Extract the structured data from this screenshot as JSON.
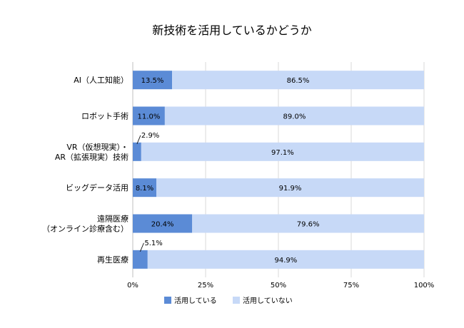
{
  "chart_data": {
    "type": "bar",
    "orientation": "horizontal",
    "stacked": true,
    "percent_stacked": true,
    "title": "新技術を活用しているかどうか",
    "categories": [
      [
        "AI（人工知能）"
      ],
      [
        "ロボット手術"
      ],
      [
        "VR（仮想現実）・",
        "AR（拡張現実）技術"
      ],
      [
        "ビッグデータ活用"
      ],
      [
        "遠隔医療",
        "（オンライン診療含む）"
      ],
      [
        "再生医療"
      ]
    ],
    "series": [
      {
        "name": "活用している",
        "color": "#5B8BD6",
        "values": [
          13.5,
          11.0,
          2.9,
          8.1,
          20.4,
          5.1
        ],
        "labels": [
          "13.5%",
          "11.0%",
          "2.9%",
          "8.1%",
          "20.4%",
          "5.1%"
        ]
      },
      {
        "name": "活用していない",
        "color": "#C7D9F7",
        "values": [
          86.5,
          89.0,
          97.1,
          91.9,
          79.6,
          94.9
        ],
        "labels": [
          "86.5%",
          "89.0%",
          "97.1%",
          "91.9%",
          "79.6%",
          "94.9%"
        ]
      }
    ],
    "xlim": [
      0,
      100
    ],
    "xticks": [
      "0%",
      "25%",
      "50%",
      "75%",
      "100%"
    ],
    "grid": true,
    "legend_position": "bottom"
  }
}
